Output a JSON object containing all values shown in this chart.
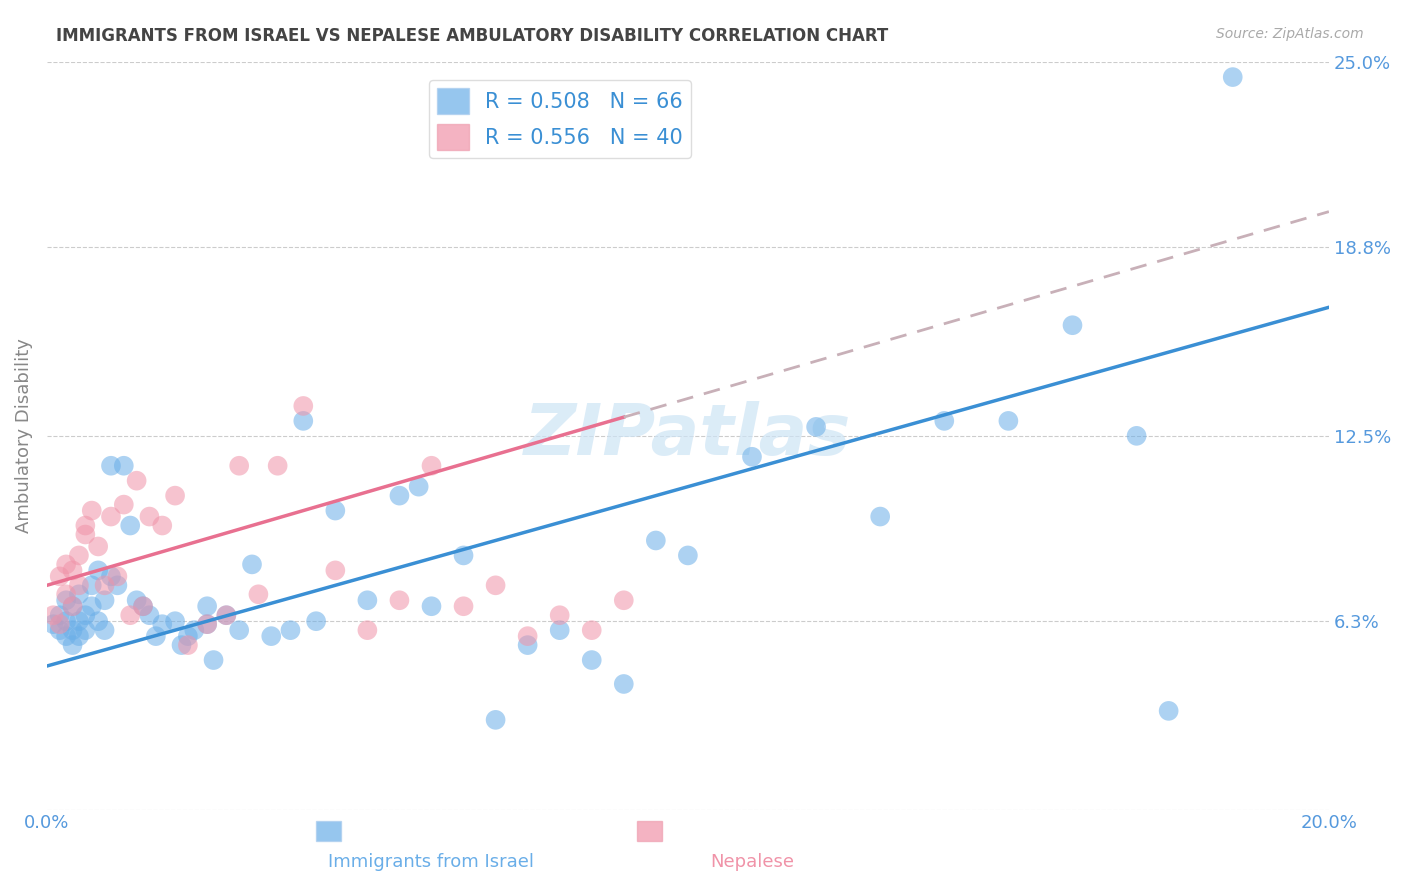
{
  "title": "IMMIGRANTS FROM ISRAEL VS NEPALESE AMBULATORY DISABILITY CORRELATION CHART",
  "source": "Source: ZipAtlas.com",
  "ylabel": "Ambulatory Disability",
  "yticks": [
    0.0,
    0.063,
    0.125,
    0.188,
    0.25
  ],
  "ytick_labels": [
    "",
    "6.3%",
    "12.5%",
    "18.8%",
    "25.0%"
  ],
  "xticks": [
    0.0,
    0.04,
    0.08,
    0.12,
    0.16,
    0.2
  ],
  "xlim": [
    0.0,
    0.2
  ],
  "ylim": [
    0.0,
    0.25
  ],
  "israel_color": "#6aaee8",
  "nepalese_color": "#f093a8",
  "israel_line_color": "#3a8fd4",
  "nepalese_line_color": "#e87090",
  "nepalese_extrapolated_color": "#c8b0b8",
  "background_color": "#ffffff",
  "grid_color": "#cccccc",
  "title_color": "#444444",
  "axis_label_color": "#5599dd",
  "watermark": "ZIPatlas",
  "israel_points_x": [
    0.001,
    0.002,
    0.002,
    0.003,
    0.003,
    0.003,
    0.004,
    0.004,
    0.004,
    0.005,
    0.005,
    0.005,
    0.006,
    0.006,
    0.007,
    0.007,
    0.008,
    0.008,
    0.009,
    0.009,
    0.01,
    0.01,
    0.011,
    0.012,
    0.013,
    0.014,
    0.015,
    0.016,
    0.017,
    0.018,
    0.02,
    0.021,
    0.022,
    0.023,
    0.025,
    0.025,
    0.026,
    0.028,
    0.03,
    0.032,
    0.035,
    0.038,
    0.04,
    0.042,
    0.045,
    0.05,
    0.055,
    0.058,
    0.06,
    0.065,
    0.07,
    0.075,
    0.08,
    0.085,
    0.09,
    0.095,
    0.1,
    0.11,
    0.12,
    0.13,
    0.14,
    0.15,
    0.16,
    0.17,
    0.175,
    0.185
  ],
  "israel_points_y": [
    0.062,
    0.06,
    0.065,
    0.063,
    0.058,
    0.07,
    0.055,
    0.06,
    0.068,
    0.072,
    0.058,
    0.063,
    0.065,
    0.06,
    0.075,
    0.068,
    0.08,
    0.063,
    0.07,
    0.06,
    0.115,
    0.078,
    0.075,
    0.115,
    0.095,
    0.07,
    0.068,
    0.065,
    0.058,
    0.062,
    0.063,
    0.055,
    0.058,
    0.06,
    0.068,
    0.062,
    0.05,
    0.065,
    0.06,
    0.082,
    0.058,
    0.06,
    0.13,
    0.063,
    0.1,
    0.07,
    0.105,
    0.108,
    0.068,
    0.085,
    0.03,
    0.055,
    0.06,
    0.05,
    0.042,
    0.09,
    0.085,
    0.118,
    0.128,
    0.098,
    0.13,
    0.13,
    0.162,
    0.125,
    0.033,
    0.245
  ],
  "nepalese_points_x": [
    0.001,
    0.002,
    0.002,
    0.003,
    0.003,
    0.004,
    0.004,
    0.005,
    0.005,
    0.006,
    0.006,
    0.007,
    0.008,
    0.009,
    0.01,
    0.011,
    0.012,
    0.013,
    0.014,
    0.015,
    0.016,
    0.018,
    0.02,
    0.022,
    0.025,
    0.028,
    0.03,
    0.033,
    0.036,
    0.04,
    0.045,
    0.05,
    0.055,
    0.06,
    0.065,
    0.07,
    0.075,
    0.08,
    0.085,
    0.09
  ],
  "nepalese_points_y": [
    0.065,
    0.062,
    0.078,
    0.072,
    0.082,
    0.068,
    0.08,
    0.075,
    0.085,
    0.092,
    0.095,
    0.1,
    0.088,
    0.075,
    0.098,
    0.078,
    0.102,
    0.065,
    0.11,
    0.068,
    0.098,
    0.095,
    0.105,
    0.055,
    0.062,
    0.065,
    0.115,
    0.072,
    0.115,
    0.135,
    0.08,
    0.06,
    0.07,
    0.115,
    0.068,
    0.075,
    0.058,
    0.065,
    0.06,
    0.07
  ],
  "israel_trendline": {
    "x": [
      0.0,
      0.2
    ],
    "y": [
      0.048,
      0.168
    ]
  },
  "nepalese_trendline": {
    "x": [
      0.0,
      0.2
    ],
    "y": [
      0.075,
      0.2
    ]
  },
  "nepalese_trendline_visible_end": 0.09
}
